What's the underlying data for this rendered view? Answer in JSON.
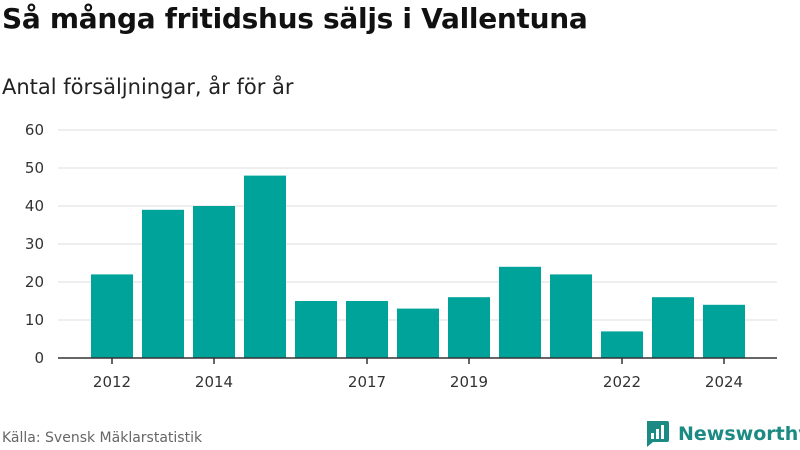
{
  "header": {
    "title": "Så många fritidshus säljs i Vallentuna",
    "subtitle": "Antal försäljningar, år för år"
  },
  "footer": {
    "source": "Källa: Svensk Mäklarstatistik",
    "brand": "Newsworthy",
    "brand_icon": "newsworthy-logo-icon"
  },
  "colors": {
    "bar": "#00a39a",
    "grid": "#dddddd",
    "axis": "#333333",
    "brand": "#1b8a83"
  },
  "chart_data": {
    "type": "bar",
    "categories": [
      "2012",
      "2013",
      "2014",
      "2015",
      "2016",
      "2017",
      "2018",
      "2019",
      "2020",
      "2021",
      "2022",
      "2023",
      "2024"
    ],
    "values": [
      22,
      39,
      40,
      48,
      15,
      15,
      13,
      16,
      24,
      22,
      7,
      16,
      14
    ],
    "x_tick_labels": [
      "2012",
      "2014",
      "2017",
      "2019",
      "2022",
      "2024"
    ],
    "y_ticks": [
      0,
      10,
      20,
      30,
      40,
      50,
      60
    ],
    "ylim": [
      0,
      60
    ],
    "grid": true,
    "legend": "none"
  }
}
